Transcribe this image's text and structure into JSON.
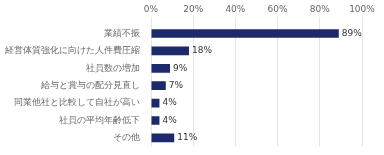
{
  "chart_data": {
    "type": "bar",
    "orientation": "horizontal",
    "categories": [
      "その他",
      "社員の平均年齢低下",
      "同業他社と比較して自社が高い",
      "給与と賞与の配分見直し",
      "社員数の増加",
      "経営体質強化に向けた人件費圧縮",
      "業績不振"
    ],
    "values": [
      11,
      4,
      4,
      7,
      9,
      18,
      89
    ],
    "value_labels": [
      "11%",
      "4%",
      "4%",
      "7%",
      "9%",
      "18%",
      "89%"
    ],
    "data_labels": true,
    "color": "#1b2a6b",
    "xlim": [
      0,
      100
    ],
    "xticks": [
      {
        "value": 0,
        "label": "0%"
      },
      {
        "value": 20,
        "label": "20%"
      },
      {
        "value": 40,
        "label": "40%"
      },
      {
        "value": 60,
        "label": "60%"
      },
      {
        "value": 80,
        "label": "80%"
      },
      {
        "value": 100,
        "label": "100%"
      }
    ],
    "grid": true
  }
}
